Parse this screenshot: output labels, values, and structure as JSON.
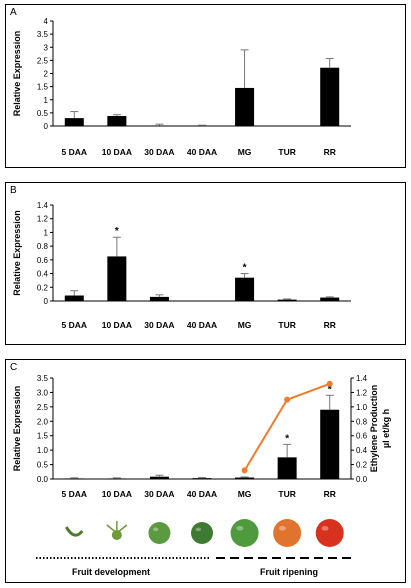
{
  "panels": [
    {
      "letter": "A"
    },
    {
      "letter": "B"
    },
    {
      "letter": "C"
    }
  ],
  "chart_data": [
    {
      "type": "bar",
      "panel": "A",
      "categories": [
        "5 DAA",
        "10 DAA",
        "30 DAA",
        "40 DAA",
        "MG",
        "TUR",
        "RR"
      ],
      "values": [
        0.3,
        0.38,
        0.02,
        0.01,
        1.45,
        0.0,
        2.22
      ],
      "errors": [
        0.25,
        0.05,
        0.05,
        0.02,
        1.45,
        0.0,
        0.35
      ],
      "significant": [
        false,
        false,
        false,
        false,
        false,
        false,
        false
      ],
      "ylabel": "Relative Expression",
      "ylim": [
        0,
        4
      ],
      "yticks": [
        "0",
        "0.5",
        "1",
        "1.5",
        "2",
        "2.5",
        "3",
        "3.5",
        "4"
      ],
      "bar_color": "#000000"
    },
    {
      "type": "bar",
      "panel": "B",
      "categories": [
        "5 DAA",
        "10 DAA",
        "30 DAA",
        "40 DAA",
        "MG",
        "TUR",
        "RR"
      ],
      "values": [
        0.08,
        0.65,
        0.06,
        0.0,
        0.34,
        0.02,
        0.05
      ],
      "errors": [
        0.07,
        0.28,
        0.03,
        0.0,
        0.06,
        0.01,
        0.01
      ],
      "significant": [
        false,
        true,
        false,
        false,
        true,
        false,
        false
      ],
      "ylabel": "Relative Expression",
      "ylim": [
        0,
        1.4
      ],
      "yticks": [
        "0",
        "0.2",
        "0.4",
        "0.6",
        "0.8",
        "1",
        "1.2",
        "1.4"
      ],
      "bar_color": "#000000"
    },
    {
      "type": "bar",
      "panel": "C",
      "categories": [
        "5 DAA",
        "10 DAA",
        "30 DAA",
        "40 DAA",
        "MG",
        "TUR",
        "RR"
      ],
      "values": [
        0.02,
        0.02,
        0.08,
        0.03,
        0.05,
        0.75,
        2.4
      ],
      "errors": [
        0.02,
        0.02,
        0.05,
        0.02,
        0.02,
        0.45,
        0.5
      ],
      "significant": [
        false,
        false,
        false,
        false,
        false,
        true,
        true
      ],
      "ylabel": "Relative Expression",
      "ylim": [
        0,
        3.5
      ],
      "yticks": [
        "0.0",
        "0.5",
        "1.0",
        "1.5",
        "2.0",
        "2.5",
        "3.0",
        "3.5"
      ],
      "bar_color": "#000000",
      "line_series": {
        "x_categories": [
          "MG",
          "TUR",
          "RR"
        ],
        "values": [
          0.12,
          1.1,
          1.32
        ],
        "color": "#f07c2a"
      },
      "y2label_line1": "Ethylene Production",
      "y2label_line2": "µl et/kg h",
      "y2lim": [
        0,
        1.4
      ],
      "y2ticks": [
        "0.0",
        "0.2",
        "0.4",
        "0.6",
        "0.8",
        "1.0",
        "1.2",
        "1.4"
      ]
    }
  ],
  "significance_marker": "*",
  "stages": {
    "development_label": "Fruit development",
    "ripening_label": "Fruit ripening"
  },
  "fruits": [
    {
      "stage": "5 DAA",
      "color": "#4d7a2a"
    },
    {
      "stage": "10 DAA",
      "color": "#6e9a3a"
    },
    {
      "stage": "30 DAA",
      "color": "#5c9a40"
    },
    {
      "stage": "40 DAA",
      "color": "#3f7a32"
    },
    {
      "stage": "MG",
      "color": "#4f9a3c"
    },
    {
      "stage": "TUR",
      "color": "#e0742e"
    },
    {
      "stage": "RR",
      "color": "#d8321e"
    }
  ]
}
